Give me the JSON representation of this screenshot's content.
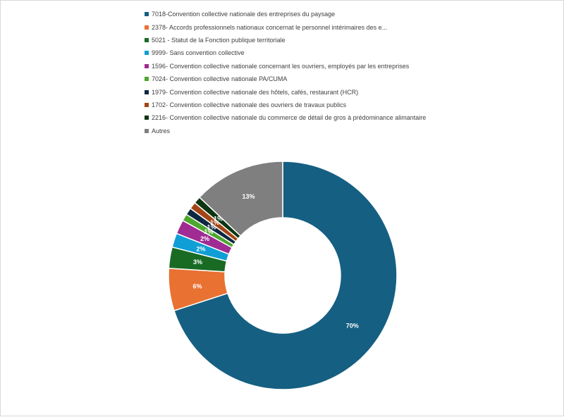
{
  "chart_data": {
    "type": "pie",
    "variant": "donut",
    "legend_position": "top",
    "series": [
      {
        "name": "7018-Convention collective nationale des entreprises du paysage",
        "value": 70,
        "label": "70%",
        "color": "#155f82"
      },
      {
        "name": "2378- Accords professionnels nationaux concernat le personnel intérimaires des e...",
        "value": 6,
        "label": "6%",
        "color": "#e97132"
      },
      {
        "name": "5021 - Statut de la Fonction publique territoriale",
        "value": 3,
        "label": "3%",
        "color": "#196b24"
      },
      {
        "name": "9999- Sans convention collective",
        "value": 2,
        "label": "2%",
        "color": "#0f9ed5"
      },
      {
        "name": "1596- Convention collective nationale concernant les ouvriers, employés par les entreprises",
        "value": 2,
        "label": "2%",
        "color": "#a02b93"
      },
      {
        "name": "7024- Convention collective nationale PA/CUMA",
        "value": 1,
        "label": "1%",
        "color": "#4ea72e"
      },
      {
        "name": "1979- Convention collective nationale des hôtels, cafés, restaurant (HCR)",
        "value": 1,
        "label": "1%",
        "color": "#0e2841"
      },
      {
        "name": "1702- Convention collective nationale des ouvriers de travaux publics",
        "value": 1,
        "label": "1%",
        "color": "#a34516"
      },
      {
        "name": "2216- Convention collective nationale du commerce de détail de gros à prédominance alimantaire",
        "value": 1,
        "label": "1%",
        "color": "#0c3512"
      },
      {
        "name": "Autres",
        "value": 13,
        "label": "13%",
        "color": "#7f7f7f"
      }
    ]
  }
}
